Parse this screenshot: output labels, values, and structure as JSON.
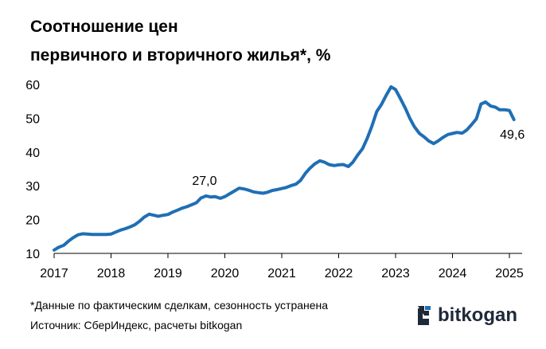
{
  "chart_data": {
    "type": "line",
    "title_line1": "Соотношение цен",
    "title_line2": "первичного и вторичного жилья*, %",
    "x_ticks": [
      "2017",
      "2018",
      "2019",
      "2020",
      "2021",
      "2022",
      "2023",
      "2024",
      "2025"
    ],
    "y_ticks": [
      "10",
      "20",
      "30",
      "40",
      "50",
      "60"
    ],
    "ylim": [
      10,
      62
    ],
    "xlim": [
      2017,
      2025.3
    ],
    "grid": false,
    "line_color": "#1f6fb4",
    "series": [
      {
        "x": [
          2017.0,
          2017.08,
          2017.17,
          2017.25,
          2017.33,
          2017.42,
          2017.5,
          2017.58,
          2017.67,
          2017.75,
          2017.83,
          2017.92,
          2018.0,
          2018.08,
          2018.17,
          2018.25,
          2018.33,
          2018.42,
          2018.5,
          2018.58,
          2018.67,
          2018.75,
          2018.83,
          2018.92,
          2019.0,
          2019.08,
          2019.17,
          2019.25,
          2019.33,
          2019.42,
          2019.5,
          2019.58,
          2019.67,
          2019.75,
          2019.83,
          2019.92,
          2020.0,
          2020.08,
          2020.17,
          2020.25,
          2020.33,
          2020.42,
          2020.5,
          2020.58,
          2020.67,
          2020.75,
          2020.83,
          2020.92,
          2021.0,
          2021.08,
          2021.17,
          2021.25,
          2021.33,
          2021.42,
          2021.5,
          2021.58,
          2021.67,
          2021.75,
          2021.83,
          2021.92,
          2022.0,
          2022.08,
          2022.17,
          2022.25,
          2022.33,
          2022.42,
          2022.5,
          2022.58,
          2022.67,
          2022.75,
          2022.83,
          2022.92,
          2023.0,
          2023.08,
          2023.17,
          2023.25,
          2023.33,
          2023.42,
          2023.5,
          2023.58,
          2023.67,
          2023.75,
          2023.83,
          2023.92,
          2024.0,
          2024.08,
          2024.17,
          2024.25,
          2024.33,
          2024.42,
          2024.5,
          2024.58,
          2024.67,
          2024.75,
          2024.83,
          2024.92,
          2025.0,
          2025.08
        ],
        "values": [
          11.0,
          11.8,
          12.4,
          13.6,
          14.6,
          15.5,
          15.8,
          15.7,
          15.6,
          15.6,
          15.6,
          15.6,
          15.7,
          16.3,
          16.9,
          17.3,
          17.8,
          18.5,
          19.5,
          20.7,
          21.6,
          21.3,
          21.0,
          21.3,
          21.5,
          22.2,
          22.8,
          23.4,
          23.8,
          24.4,
          25.0,
          26.4,
          27.0,
          26.7,
          26.8,
          26.3,
          26.8,
          27.6,
          28.5,
          29.3,
          29.1,
          28.7,
          28.2,
          28.0,
          27.8,
          28.1,
          28.6,
          28.9,
          29.2,
          29.5,
          30.1,
          30.5,
          31.6,
          33.8,
          35.3,
          36.5,
          37.4,
          37.0,
          36.3,
          36.0,
          36.2,
          36.3,
          35.7,
          37.0,
          39.0,
          41.0,
          44.0,
          47.5,
          52.0,
          54.0,
          56.6,
          59.3,
          58.5,
          56.0,
          53.0,
          50.0,
          47.5,
          45.5,
          44.5,
          43.3,
          42.5,
          43.3,
          44.3,
          45.2,
          45.5,
          45.8,
          45.6,
          46.5,
          48.0,
          49.8,
          54.2,
          54.8,
          53.6,
          53.3,
          52.5,
          52.5,
          52.3,
          49.6
        ]
      }
    ],
    "annotations": [
      {
        "x": 2019.67,
        "y": 27.0,
        "text": "27,0"
      },
      {
        "x": 2025.08,
        "y": 49.6,
        "text": "49,6"
      }
    ]
  },
  "footnote": "*Данные по фактическим сделкам, сезонность устранена",
  "source": "Источник: СберИндекс, расчеты bitkogan",
  "logo": {
    "text": "bitkogan",
    "icon": "bitkogan-logo-icon",
    "color": "#1e2a3a"
  }
}
